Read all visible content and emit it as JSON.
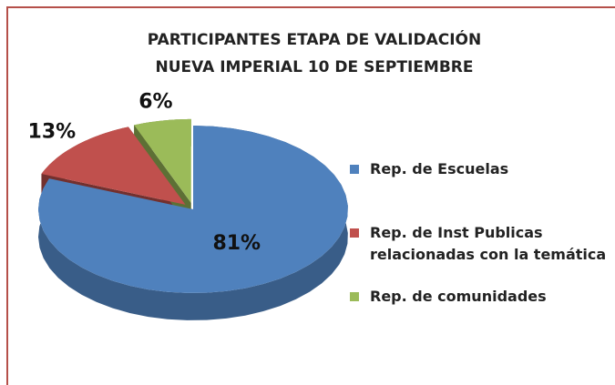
{
  "chart_data": {
    "type": "pie3d",
    "title": [
      "PARTICIPANTES ETAPA DE VALIDACIÓN",
      "NUEVA IMPERIAL 10 DE SEPTIEMBRE"
    ],
    "categories": [
      "Rep. de Escuelas",
      "Rep. de Inst Publicas relacionadas con la temática",
      "Rep. de comunidades"
    ],
    "values": [
      81,
      13,
      6
    ],
    "value_labels": [
      "81%",
      "13%",
      "6%"
    ],
    "colors": [
      "#4f81bd",
      "#c0504d",
      "#9bbb59"
    ],
    "legend": "right"
  }
}
